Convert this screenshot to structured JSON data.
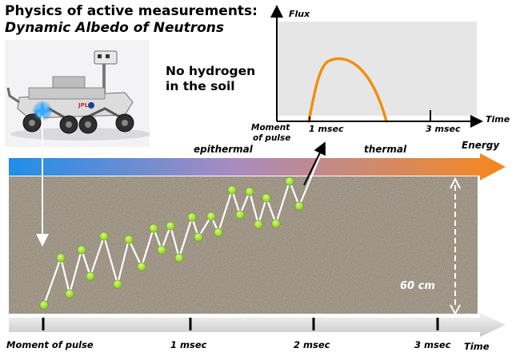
{
  "title": {
    "line1": "Physics of active measurements:",
    "line2": "Dynamic Albedo of Neutrons"
  },
  "note": "No hydrogen\nin the soil",
  "flux_chart": {
    "y_axis_label": "Flux",
    "x_axis_label": "Time",
    "origin_label": "Moment\nof pulse",
    "tick_labels": [
      "1 msec",
      "3 msec"
    ],
    "panel_color": "#e6e6e6",
    "curve_color": "#f0900f"
  },
  "energy_bar": {
    "labels": [
      "epithermal",
      "thermal"
    ],
    "axis_label": "Energy",
    "color_start": "#1f8ee8",
    "color_end": "#f5881c"
  },
  "soil": {
    "depth_label": "60 cm",
    "color": "#8e8372",
    "neutron_color": "#8fd11b"
  },
  "time_axis": {
    "tick_labels": [
      "Moment of pulse",
      "1 msec",
      "2 msec",
      "3 msec"
    ],
    "axis_label": "Time"
  },
  "rover": {
    "icon": "mars-rover-icon"
  }
}
